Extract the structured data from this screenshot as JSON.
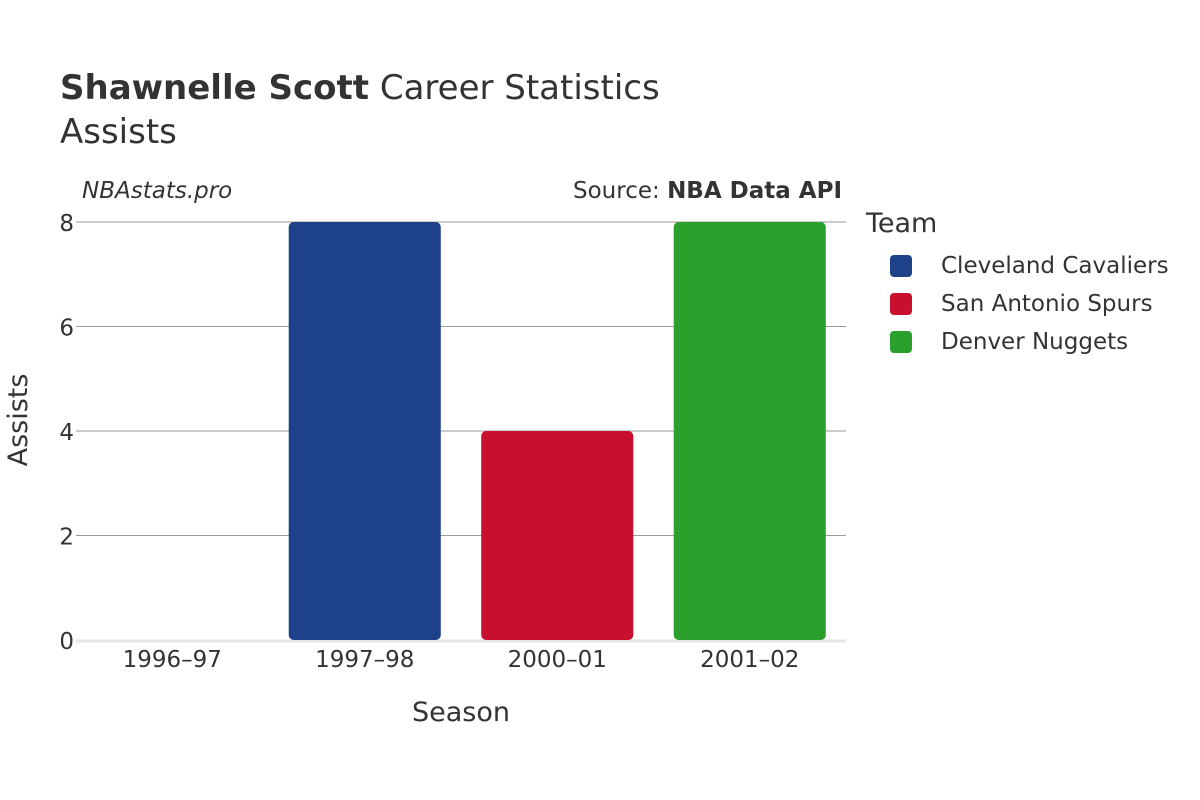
{
  "header": {
    "title_bold": "Shawnelle Scott",
    "title_rest": " Career Statistics",
    "subtitle": "Assists",
    "watermark": "NBAstats.pro",
    "source_prefix": "Source: ",
    "source_name": "NBA Data API"
  },
  "legend": {
    "title": "Team",
    "items": [
      {
        "label": "Cleveland Cavaliers",
        "color": "#1d428a"
      },
      {
        "label": "San Antonio Spurs",
        "color": "#c8102e"
      },
      {
        "label": "Denver Nuggets",
        "color": "#2ca02c"
      }
    ]
  },
  "chart_data": {
    "type": "bar",
    "title": "Shawnelle Scott Career Statistics",
    "subtitle": "Assists",
    "xlabel": "Season",
    "ylabel": "Assists",
    "categories": [
      "1996–97",
      "1997–98",
      "2000–01",
      "2001–02"
    ],
    "ylim": [
      0,
      8
    ],
    "yticks": [
      0,
      2,
      4,
      6,
      8
    ],
    "grid": true,
    "legend_position": "right",
    "series": [
      {
        "name": "Cleveland Cavaliers",
        "color": "#1d428a",
        "values": [
          0,
          8,
          null,
          null
        ]
      },
      {
        "name": "San Antonio Spurs",
        "color": "#c8102e",
        "values": [
          null,
          null,
          4,
          null
        ]
      },
      {
        "name": "Denver Nuggets",
        "color": "#2ca02c",
        "values": [
          null,
          null,
          null,
          8
        ]
      }
    ]
  }
}
